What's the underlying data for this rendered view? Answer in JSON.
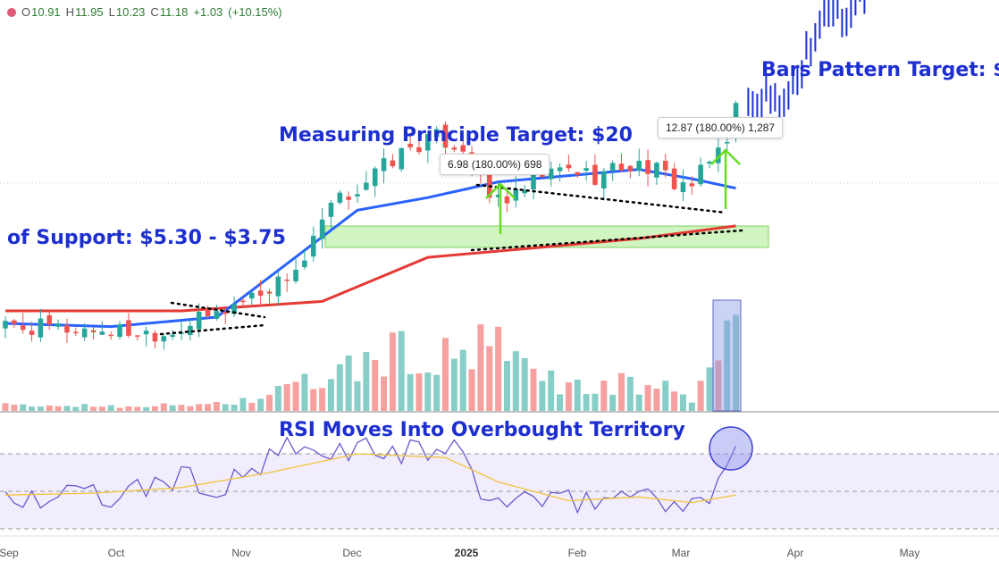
{
  "ohlc": {
    "open_key": "O",
    "open": "10.91",
    "high_key": "H",
    "high": "11.95",
    "low_key": "L",
    "low": "10.23",
    "close_key": "C",
    "close": "11.18",
    "change": "+1.03",
    "change_pct": "(+10.15%)"
  },
  "annotations": {
    "support": "of Support: $5.30 - $3.75",
    "measuring": "Measuring Principle Target: $20",
    "bars_pattern": "Bars Pattern Target: $",
    "rsi": "RSI Moves Into Overbought Territory",
    "box1": "6.98 (180.00%) 698",
    "box2": "12.87 (180.00%) 1,287"
  },
  "colors": {
    "up": "#26a69a",
    "down": "#ef5350",
    "ma_short": "#2962ff",
    "ma_long": "#e53935",
    "projection": "#1a2fd6",
    "arrow": "#66dd22",
    "support_zone": "#b9f0a0",
    "volume_highlight": "#8e9be6",
    "rsi": "#6a5acd",
    "rsi_ma": "#f2c53d",
    "annotation": "#1e2fd0"
  },
  "chart_data": {
    "type": "candlestick",
    "x_ticks": [
      "Sep",
      "Oct",
      "Nov",
      "Dec",
      "2025",
      "Feb",
      "Mar",
      "Apr",
      "May"
    ],
    "bold_tick": "2025",
    "price_path": [
      [
        0,
        4.2
      ],
      [
        10,
        4.1
      ],
      [
        18,
        4.0
      ],
      [
        24,
        4.6
      ],
      [
        28,
        5.2
      ],
      [
        31,
        5.6
      ],
      [
        34,
        6.3
      ],
      [
        37,
        8.0
      ],
      [
        40,
        8.6
      ],
      [
        43,
        9.3
      ],
      [
        46,
        9.9
      ],
      [
        49,
        10.2
      ],
      [
        52,
        9.9
      ],
      [
        55,
        8.3
      ],
      [
        58,
        8.3
      ],
      [
        61,
        9.0
      ],
      [
        64,
        9.2
      ],
      [
        67,
        9.0
      ],
      [
        70,
        9.3
      ],
      [
        73,
        9.3
      ],
      [
        76,
        8.8
      ],
      [
        78,
        8.7
      ],
      [
        80,
        9.4
      ],
      [
        82,
        10.3
      ],
      [
        83,
        11.18
      ]
    ],
    "projection_path": [
      [
        84,
        11.5
      ],
      [
        88,
        11.3
      ],
      [
        92,
        13.8
      ],
      [
        96,
        14.3
      ],
      [
        100,
        16.7
      ],
      [
        104,
        19.2
      ]
    ],
    "ma_short_path": [
      [
        0,
        4.3
      ],
      [
        12,
        4.2
      ],
      [
        24,
        4.5
      ],
      [
        32,
        6.2
      ],
      [
        40,
        7.9
      ],
      [
        48,
        8.3
      ],
      [
        56,
        8.8
      ],
      [
        64,
        9.0
      ],
      [
        72,
        9.2
      ],
      [
        78,
        8.9
      ],
      [
        83,
        8.6
      ]
    ],
    "ma_long_path": [
      [
        0,
        4.7
      ],
      [
        20,
        4.7
      ],
      [
        36,
        5.0
      ],
      [
        48,
        6.4
      ],
      [
        60,
        6.7
      ],
      [
        72,
        7.0
      ],
      [
        83,
        7.4
      ]
    ],
    "volume_path": [
      [
        0,
        0.05
      ],
      [
        20,
        0.05
      ],
      [
        28,
        0.1
      ],
      [
        34,
        0.25
      ],
      [
        40,
        0.4
      ],
      [
        44,
        0.55
      ],
      [
        48,
        0.45
      ],
      [
        52,
        0.5
      ],
      [
        55,
        0.6
      ],
      [
        58,
        0.45
      ],
      [
        62,
        0.3
      ],
      [
        66,
        0.2
      ],
      [
        70,
        0.25
      ],
      [
        74,
        0.22
      ],
      [
        78,
        0.12
      ],
      [
        80,
        0.35
      ],
      [
        82,
        0.95
      ],
      [
        83,
        0.75
      ]
    ],
    "rsi_path": [
      [
        0,
        48
      ],
      [
        4,
        45
      ],
      [
        8,
        49
      ],
      [
        12,
        46
      ],
      [
        16,
        52
      ],
      [
        20,
        58
      ],
      [
        24,
        50
      ],
      [
        28,
        60
      ],
      [
        32,
        72
      ],
      [
        36,
        68
      ],
      [
        40,
        75
      ],
      [
        44,
        70
      ],
      [
        48,
        72
      ],
      [
        52,
        70
      ],
      [
        55,
        42
      ],
      [
        58,
        48
      ],
      [
        62,
        43
      ],
      [
        66,
        45
      ],
      [
        70,
        48
      ],
      [
        74,
        50
      ],
      [
        76,
        42
      ],
      [
        78,
        40
      ],
      [
        80,
        46
      ],
      [
        82,
        70
      ],
      [
        83,
        75
      ]
    ],
    "rsi_ma_path": [
      [
        0,
        48
      ],
      [
        10,
        49
      ],
      [
        20,
        52
      ],
      [
        30,
        60
      ],
      [
        40,
        70
      ],
      [
        50,
        68
      ],
      [
        56,
        55
      ],
      [
        64,
        45
      ],
      [
        72,
        47
      ],
      [
        78,
        44
      ],
      [
        83,
        48
      ]
    ],
    "rsi_levels": {
      "upper": 70,
      "mid": 50,
      "lower": 30
    },
    "support_zone": [
      3.75,
      5.3
    ],
    "measured_moves": [
      {
        "label": "6.98 (180.00%) 698",
        "value": 6.98,
        "pct": 180.0,
        "bars": 698
      },
      {
        "label": "12.87 (180.00%) 1,287",
        "value": 12.87,
        "pct": 180.0,
        "bars": 1287
      }
    ],
    "targets": {
      "measuring_principle": 20
    }
  }
}
